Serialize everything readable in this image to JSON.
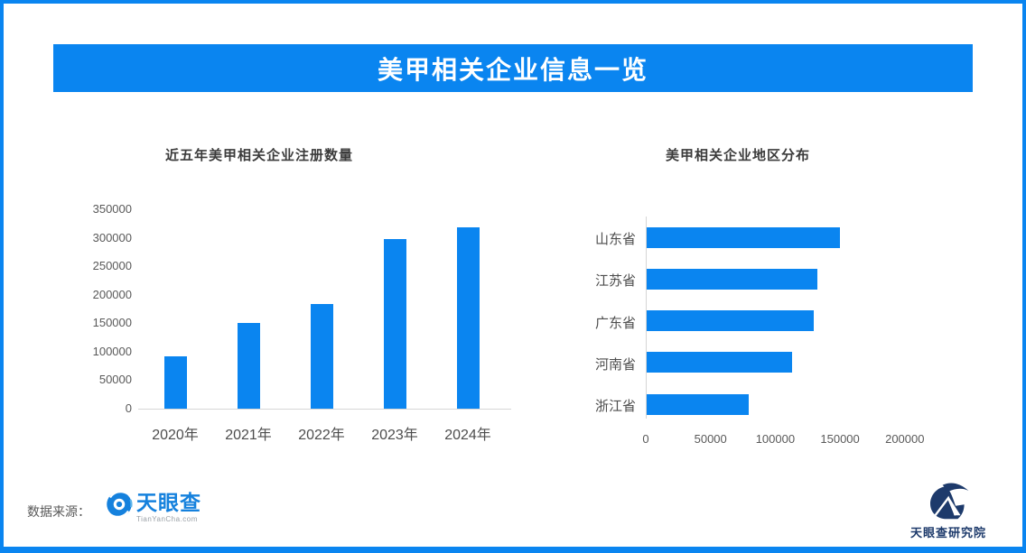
{
  "page": {
    "title": "美甲相关企业信息一览",
    "source_label": "数据来源：",
    "brand": {
      "name": "天眼查",
      "domain": "TianYanCha.com"
    },
    "institute": "天眼查研究院",
    "colors": {
      "accent_blue": "#0a85f0",
      "brand_blue": "#1581dd",
      "institute_navy": "#1d3a6b",
      "axis_text": "#595959",
      "axis_line": "#d6d6d6"
    }
  },
  "chart_data": [
    {
      "type": "bar",
      "orientation": "vertical",
      "title": "近五年美甲相关企业注册数量",
      "categories": [
        "2020年",
        "2021年",
        "2022年",
        "2023年",
        "2024年"
      ],
      "values": [
        92000,
        150000,
        184000,
        297000,
        318000
      ],
      "ylabel": "",
      "xlabel": "",
      "ylim": [
        0,
        350000
      ],
      "yticks": [
        0,
        50000,
        100000,
        150000,
        200000,
        250000,
        300000,
        350000
      ],
      "grid": false,
      "bar_color": "#0a85f0"
    },
    {
      "type": "bar",
      "orientation": "horizontal",
      "title": "美甲相关企业地区分布",
      "categories": [
        "山东省",
        "江苏省",
        "广东省",
        "河南省",
        "浙江省"
      ],
      "values": [
        149000,
        132000,
        129000,
        112000,
        79000
      ],
      "ylabel": "",
      "xlabel": "",
      "xlim": [
        0,
        250000
      ],
      "xticks": [
        0,
        50000,
        100000,
        150000,
        200000
      ],
      "grid": false,
      "bar_color": "#0a85f0"
    }
  ]
}
